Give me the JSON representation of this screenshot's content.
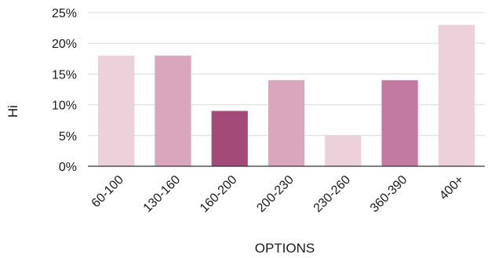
{
  "chart_data": {
    "type": "bar",
    "categories": [
      "60-100",
      "130-160",
      "160-200",
      "200-230",
      "230-260",
      "360-390",
      "400+"
    ],
    "values": [
      18,
      18,
      9,
      14,
      5,
      14,
      23
    ],
    "colors": [
      "#ecd0da",
      "#d9a6be",
      "#a34a78",
      "#d9a6be",
      "#ecd0da",
      "#c27aa0",
      "#ecd0da"
    ],
    "xlabel": "OPTIONS",
    "ylabel": "Hi",
    "ylim": [
      0,
      25
    ],
    "yticks": [
      0,
      5,
      10,
      15,
      20,
      25
    ],
    "ytick_labels": [
      "0%",
      "5%",
      "10%",
      "15%",
      "20%",
      "25%"
    ],
    "grid": true,
    "legend": "none"
  }
}
